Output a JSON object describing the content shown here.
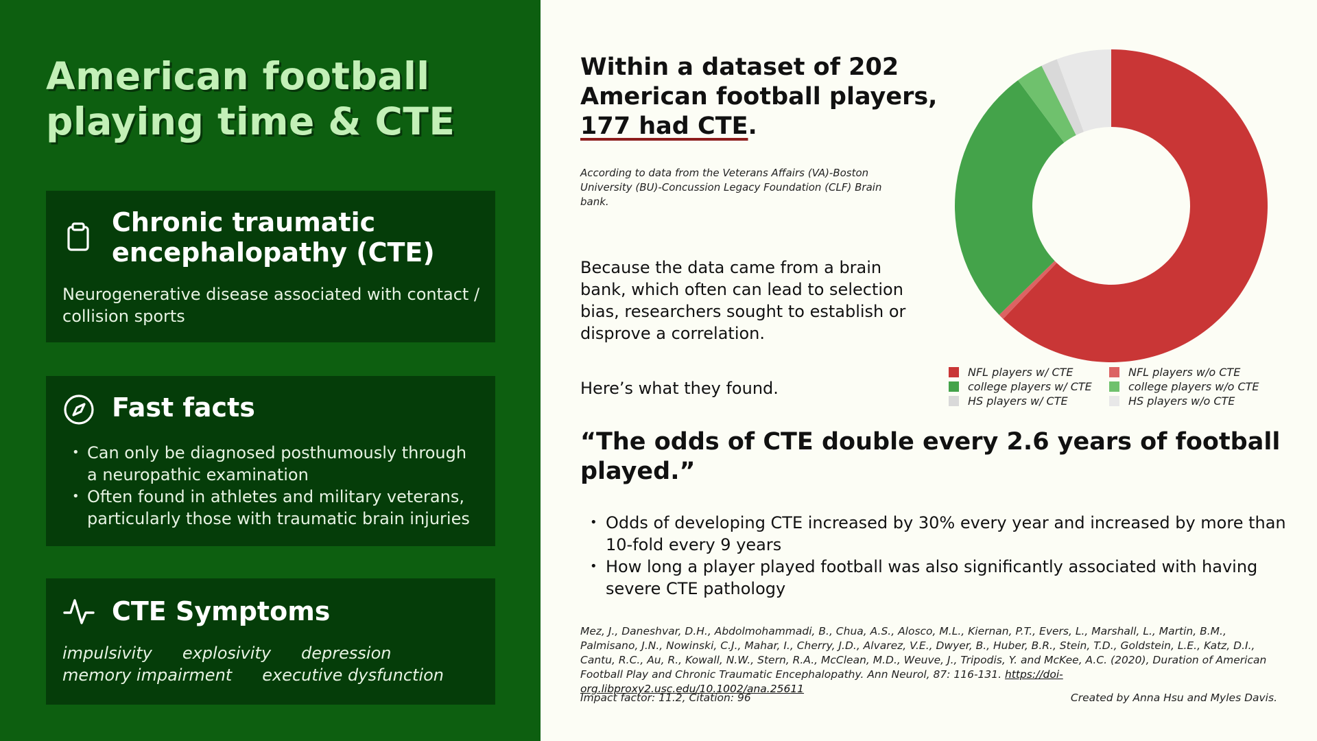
{
  "left_panel": {
    "title": "American football playing time & CTE",
    "card_cte": {
      "icon": "clipboard-icon",
      "title": "Chronic traumatic encephalopathy (CTE)",
      "description": "Neurogenerative disease associated with contact / collision sports"
    },
    "card_facts": {
      "icon": "compass-icon",
      "title": "Fast facts",
      "items": [
        "Can only be diagnosed posthumously through a neuropathic examination",
        "Often found in athletes and military veterans, particularly those with traumatic brain injuries"
      ]
    },
    "card_symptoms": {
      "icon": "activity-icon",
      "title": "CTE Symptoms",
      "symptoms": [
        "impulsivity",
        "explosivity",
        "depression",
        "memory impairment",
        "executive dysfunction"
      ]
    }
  },
  "right_panel": {
    "headline_prefix": "Within a dataset of 202 American football players, ",
    "headline_highlight": "177 had CTE",
    "headline_suffix": ".",
    "source_note": "According to data from the Veterans Affairs (VA)-Boston University (BU)-Concussion Legacy Foundation (CLF) Brain bank.",
    "bias_text": "Because the data came from a brain bank, which often can lead to selection bias, researchers sought to establish or disprove a correlation.",
    "found_text": "Here’s what they found.",
    "quote": "“The odds of CTE double every 2.6 years of football played.”",
    "findings": [
      "Odds of developing CTE increased by 30% every year and increased by more than 10-fold every 9 years",
      "How long a player played football was also significantly associated with having severe CTE pathology"
    ],
    "citation": "Mez, J., Daneshvar, D.H., Abdolmohammadi, B., Chua, A.S., Alosco, M.L., Kiernan, P.T., Evers, L., Marshall, L., Martin, B.M., Palmisano, J.N., Nowinski, C.J., Mahar, I., Cherry, J.D., Alvarez, V.E., Dwyer, B., Huber, B.R., Stein, T.D., Goldstein, L.E., Katz, D.I., Cantu, R.C., Au, R., Kowall, N.W., Stern, R.A., McClean, M.D., Weuve, J., Tripodis, Y. and McKee, A.C. (2020), Duration of American Football Play and Chronic Traumatic Encephalopathy. Ann Neurol, 87: 116-131. ",
    "citation_link": "https://doi-org.libproxy2.usc.edu/10.1002/ana.25611",
    "impact": "Impact factor: 11.2, Citation: 96",
    "credits": "Created by Anna Hsu and Myles Davis."
  },
  "colors": {
    "left_background": "#0d5f10",
    "card_background": "#053d09",
    "title_color": "#c3f0b7",
    "page_background": "#fcfdf5"
  },
  "chart_data": {
    "type": "pie",
    "donut": true,
    "title": "",
    "categories": [
      "NFL players w/ CTE",
      "NFL players w/o CTE",
      "college players w/ CTE",
      "college players w/o CTE",
      "HS players w/ CTE",
      "HS players w/o CTE"
    ],
    "values": [
      110,
      1,
      48,
      5,
      3,
      10
    ],
    "colors": [
      "#c93636",
      "#dc6363",
      "#44a34a",
      "#6fc16d",
      "#d9d9d9",
      "#e8e8e8"
    ],
    "legend_position": "bottom"
  }
}
